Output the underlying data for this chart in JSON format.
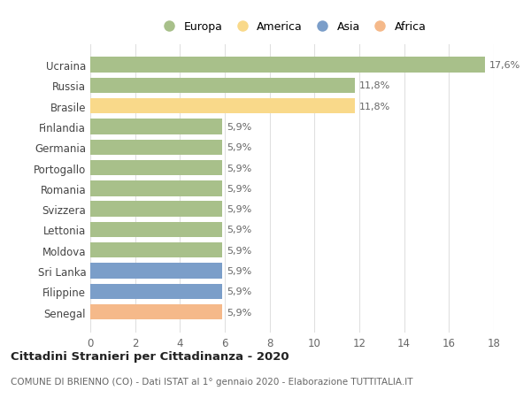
{
  "countries": [
    "Ucraina",
    "Russia",
    "Brasile",
    "Finlandia",
    "Germania",
    "Portogallo",
    "Romania",
    "Svizzera",
    "Lettonia",
    "Moldova",
    "Sri Lanka",
    "Filippine",
    "Senegal"
  ],
  "values": [
    17.6,
    11.8,
    11.8,
    5.9,
    5.9,
    5.9,
    5.9,
    5.9,
    5.9,
    5.9,
    5.9,
    5.9,
    5.9
  ],
  "labels": [
    "17,6%",
    "11,8%",
    "11,8%",
    "5,9%",
    "5,9%",
    "5,9%",
    "5,9%",
    "5,9%",
    "5,9%",
    "5,9%",
    "5,9%",
    "5,9%",
    "5,9%"
  ],
  "colors": [
    "#a8c08a",
    "#a8c08a",
    "#f9d98a",
    "#a8c08a",
    "#a8c08a",
    "#a8c08a",
    "#a8c08a",
    "#a8c08a",
    "#a8c08a",
    "#a8c08a",
    "#7b9ec9",
    "#7b9ec9",
    "#f5b98a"
  ],
  "legend_labels": [
    "Europa",
    "America",
    "Asia",
    "Africa"
  ],
  "legend_colors": [
    "#a8c08a",
    "#f9d98a",
    "#7b9ec9",
    "#f5b98a"
  ],
  "title": "Cittadini Stranieri per Cittadinanza - 2020",
  "subtitle": "COMUNE DI BRIENNO (CO) - Dati ISTAT al 1° gennaio 2020 - Elaborazione TUTTITALIA.IT",
  "xlim": [
    0,
    18
  ],
  "xticks": [
    0,
    2,
    4,
    6,
    8,
    10,
    12,
    14,
    16,
    18
  ],
  "background_color": "#ffffff",
  "grid_color": "#e0e0e0",
  "bar_height": 0.75
}
